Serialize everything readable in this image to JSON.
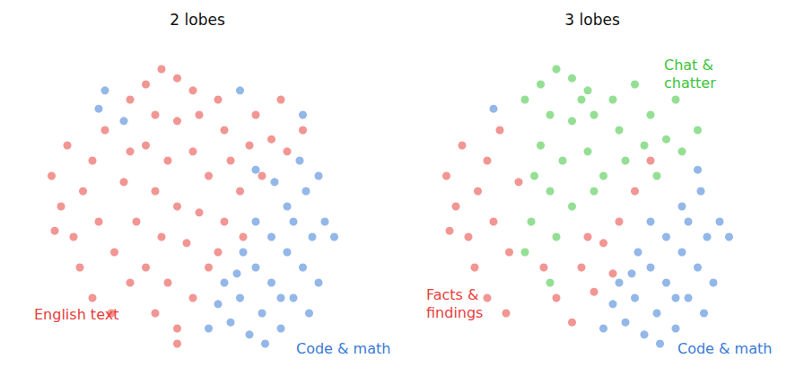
{
  "chart_data": [
    {
      "type": "scatter",
      "title": "2 lobes",
      "tick_labels": false,
      "grid": false,
      "xlim": [
        0,
        100
      ],
      "ylim": [
        0,
        100
      ],
      "series": [
        {
          "name": "English text",
          "color": "#e8403a",
          "marker": "circle",
          "x": [
            5,
            8,
            10,
            12,
            15,
            18,
            20,
            22,
            25,
            14,
            28,
            30,
            6,
            18,
            24,
            30,
            35,
            40,
            45,
            50,
            38,
            45,
            52,
            58,
            60,
            35,
            42,
            50,
            55,
            62,
            68,
            38,
            45,
            52,
            32,
            40,
            48,
            35,
            42,
            38,
            45,
            50,
            55,
            60,
            65,
            70,
            75,
            72,
            80,
            66,
            58,
            45,
            30,
            85,
            78
          ],
          "values": [
            60,
            50,
            70,
            40,
            55,
            65,
            45,
            75,
            35,
            30,
            58,
            68,
            42,
            20,
            15,
            85,
            90,
            95,
            92,
            88,
            80,
            78,
            80,
            85,
            75,
            70,
            65,
            68,
            60,
            65,
            70,
            55,
            50,
            48,
            45,
            40,
            38,
            30,
            25,
            15,
            10,
            20,
            30,
            45,
            55,
            80,
            72,
            60,
            68,
            40,
            35,
            5,
            25,
            75,
            85
          ]
        },
        {
          "name": "Code & math",
          "color": "#3a7bd5",
          "marker": "circle",
          "x": [
            60,
            65,
            70,
            75,
            80,
            85,
            72,
            78,
            68,
            62,
            82,
            88,
            90,
            75,
            70,
            80,
            86,
            92,
            76,
            84,
            90,
            73,
            58,
            66,
            95,
            82,
            55,
            64,
            78,
            87,
            20,
            22,
            28,
            65,
            70,
            85
          ],
          "values": [
            25,
            20,
            30,
            25,
            35,
            30,
            15,
            10,
            8,
            12,
            20,
            40,
            25,
            40,
            45,
            50,
            55,
            45,
            58,
            65,
            60,
            5,
            18,
            35,
            40,
            45,
            10,
            28,
            20,
            15,
            82,
            88,
            78,
            88,
            62,
            80
          ]
        }
      ]
    },
    {
      "type": "scatter",
      "title": "3 lobes",
      "tick_labels": false,
      "grid": false,
      "xlim": [
        0,
        100
      ],
      "ylim": [
        0,
        100
      ],
      "series": [
        {
          "name": "Facts &\nfindings",
          "color": "#e8403a",
          "marker": "circle",
          "x": [
            5,
            8,
            10,
            12,
            15,
            18,
            20,
            22,
            25,
            14,
            6,
            18,
            24,
            28,
            50,
            55,
            60,
            48,
            58,
            52,
            40,
            45,
            65,
            70,
            36
          ],
          "values": [
            60,
            50,
            70,
            40,
            55,
            65,
            45,
            75,
            35,
            30,
            42,
            20,
            15,
            58,
            40,
            38,
            45,
            30,
            28,
            22,
            20,
            12,
            55,
            65,
            30
          ]
        },
        {
          "name": "Chat &\nchatter",
          "color": "#3cc43c",
          "marker": "circle",
          "x": [
            30,
            35,
            40,
            45,
            50,
            38,
            45,
            52,
            58,
            60,
            35,
            42,
            50,
            55,
            62,
            68,
            38,
            45,
            52,
            32,
            40,
            70,
            75,
            72,
            80,
            78,
            85,
            33,
            48,
            65,
            30,
            38
          ],
          "values": [
            85,
            90,
            95,
            92,
            88,
            80,
            78,
            80,
            85,
            75,
            70,
            65,
            68,
            60,
            65,
            70,
            55,
            50,
            55,
            45,
            40,
            80,
            72,
            60,
            68,
            85,
            75,
            60,
            85,
            90,
            35,
            25
          ]
        },
        {
          "name": "Code & math",
          "color": "#3a7bd5",
          "marker": "circle",
          "x": [
            60,
            65,
            70,
            75,
            80,
            85,
            72,
            78,
            68,
            62,
            82,
            88,
            90,
            75,
            70,
            80,
            86,
            92,
            73,
            58,
            66,
            95,
            82,
            55,
            64,
            78,
            87,
            20,
            85
          ],
          "values": [
            25,
            20,
            30,
            25,
            35,
            30,
            15,
            10,
            8,
            12,
            20,
            40,
            25,
            40,
            45,
            50,
            55,
            45,
            5,
            18,
            35,
            40,
            45,
            10,
            28,
            20,
            15,
            82,
            62
          ]
        }
      ]
    }
  ]
}
